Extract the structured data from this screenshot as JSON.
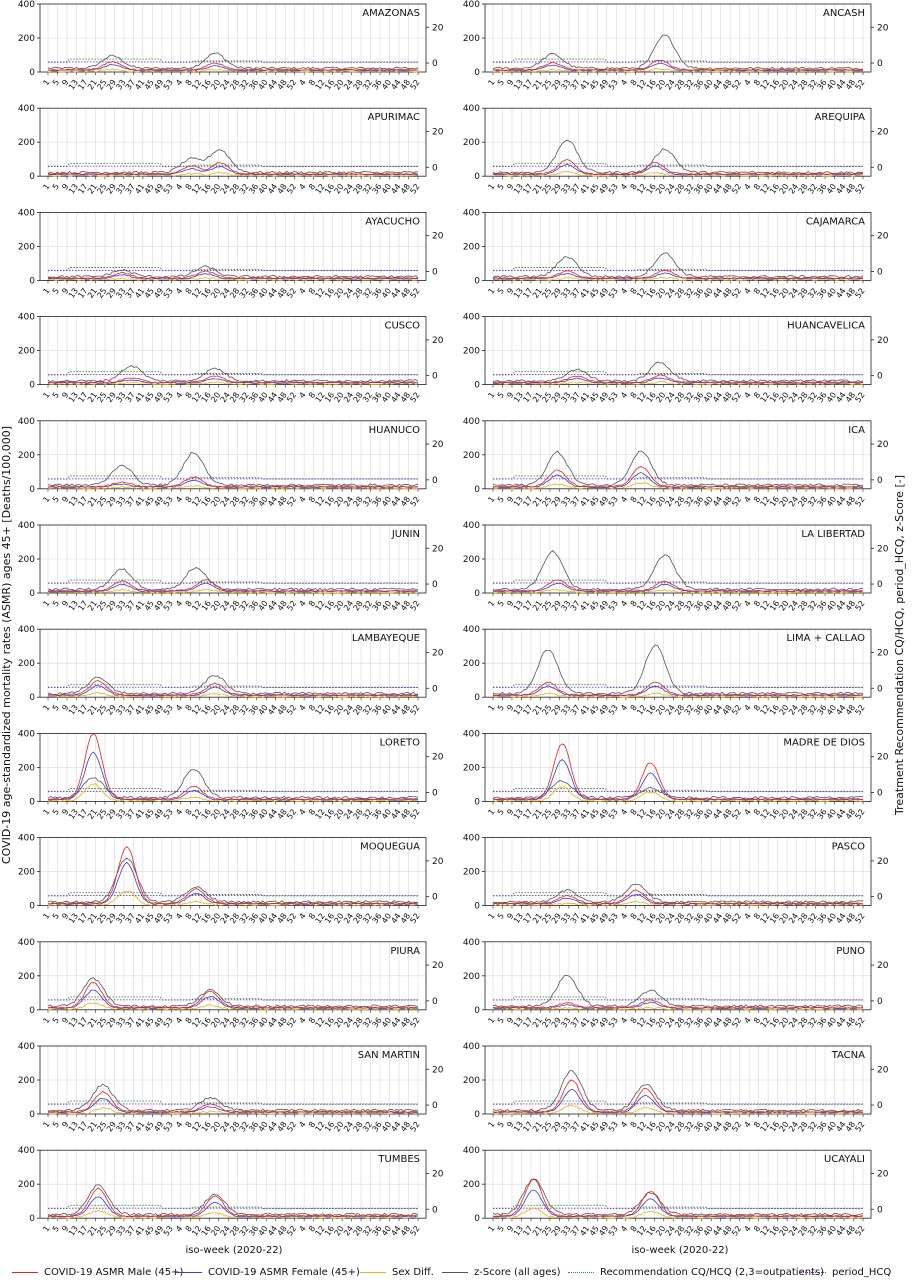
{
  "chart_data": {
    "type": "line",
    "y_left_label": "COVID-19 age-standardized mortality rates (ASMR) ages 45+ [Deaths/100,000]",
    "y_right_label": "Treatment Recommendation CQ/HCQ, period_HCQ, z-Score [-]",
    "x_label": "iso-week (2020-22)",
    "ylim_left": [
      0,
      400
    ],
    "yticks_left": [
      "0",
      "200",
      "400"
    ],
    "ylim_right": [
      -5,
      33
    ],
    "yticks_right": [
      "0",
      "20"
    ],
    "x_ticks": [
      "1",
      "5",
      "9",
      "13",
      "17",
      "21",
      "25",
      "29",
      "33",
      "37",
      "41",
      "45",
      "49",
      "53",
      "4",
      "8",
      "12",
      "16",
      "20",
      "24",
      "28",
      "32",
      "36",
      "40",
      "44",
      "48",
      "52",
      "4",
      "8",
      "12",
      "16",
      "20",
      "24",
      "28",
      "32",
      "36",
      "40",
      "44",
      "48",
      "52"
    ],
    "grid": true,
    "legend": {
      "placement": "bottom",
      "entries": [
        {
          "label": "COVID-19 ASMR Male (45+)",
          "color": "#e8231f",
          "style": "solid"
        },
        {
          "label": "COVID-19 ASMR Female (45+)",
          "color": "#3b3bd6",
          "style": "solid"
        },
        {
          "label": "Sex Diff.",
          "color": "#f2b200",
          "style": "solid"
        },
        {
          "label": "z-Score (all ages)",
          "color": "#555555",
          "style": "solid"
        },
        {
          "label": "Recommendation CQ/HCQ (2,3=outpatients)",
          "color": "#2a9a2a",
          "style": "dotted"
        },
        {
          "label": "period_HCQ",
          "color": "#8a2be2",
          "style": "dotted"
        }
      ]
    },
    "panels": [
      {
        "region": "AMAZONAS",
        "male_peaks": [
          [
            27,
            60
          ],
          [
            70,
            50
          ]
        ],
        "zscore_peaks": [
          [
            27,
            95
          ],
          [
            70,
            110
          ]
        ]
      },
      {
        "region": "ANCASH",
        "male_peaks": [
          [
            25,
            55
          ],
          [
            70,
            70
          ]
        ],
        "zscore_peaks": [
          [
            25,
            105
          ],
          [
            72,
            215
          ]
        ]
      },
      {
        "region": "APURIMAC",
        "male_peaks": [
          [
            60,
            60
          ],
          [
            72,
            80
          ]
        ],
        "zscore_peaks": [
          [
            60,
            100
          ],
          [
            72,
            155
          ]
        ]
      },
      {
        "region": "AREQUIPA",
        "male_peaks": [
          [
            31,
            95
          ],
          [
            68,
            80
          ]
        ],
        "zscore_peaks": [
          [
            31,
            215
          ],
          [
            72,
            160
          ]
        ]
      },
      {
        "region": "AYACUCHO",
        "male_peaks": [
          [
            31,
            45
          ],
          [
            66,
            55
          ]
        ],
        "zscore_peaks": [
          [
            31,
            60
          ],
          [
            66,
            80
          ]
        ]
      },
      {
        "region": "CAJAMARCA",
        "male_peaks": [
          [
            31,
            55
          ],
          [
            72,
            60
          ]
        ],
        "zscore_peaks": [
          [
            31,
            140
          ],
          [
            72,
            160
          ]
        ]
      },
      {
        "region": "CUSCO",
        "male_peaks": [
          [
            35,
            40
          ],
          [
            70,
            50
          ]
        ],
        "zscore_peaks": [
          [
            35,
            110
          ],
          [
            70,
            95
          ]
        ]
      },
      {
        "region": "HUANCAVELICA",
        "male_peaks": [
          [
            35,
            50
          ],
          [
            70,
            55
          ]
        ],
        "zscore_peaks": [
          [
            35,
            90
          ],
          [
            70,
            130
          ]
        ]
      },
      {
        "region": "HUANUCO",
        "male_peaks": [
          [
            31,
            40
          ],
          [
            61,
            70
          ]
        ],
        "zscore_peaks": [
          [
            31,
            140
          ],
          [
            61,
            215
          ]
        ]
      },
      {
        "region": "ICA",
        "male_peaks": [
          [
            27,
            110
          ],
          [
            62,
            130
          ]
        ],
        "zscore_peaks": [
          [
            27,
            215
          ],
          [
            62,
            225
          ]
        ]
      },
      {
        "region": "JUNIN",
        "male_peaks": [
          [
            31,
            70
          ],
          [
            66,
            80
          ]
        ],
        "zscore_peaks": [
          [
            31,
            140
          ],
          [
            62,
            150
          ]
        ]
      },
      {
        "region": "LA LIBERTAD",
        "male_peaks": [
          [
            27,
            80
          ],
          [
            72,
            70
          ]
        ],
        "zscore_peaks": [
          [
            25,
            245
          ],
          [
            72,
            225
          ]
        ]
      },
      {
        "region": "LAMBAYEQUE",
        "male_peaks": [
          [
            21,
            95
          ],
          [
            70,
            80
          ]
        ],
        "zscore_peaks": [
          [
            21,
            115
          ],
          [
            70,
            130
          ]
        ]
      },
      {
        "region": "LIMA + CALLAO",
        "male_peaks": [
          [
            23,
            90
          ],
          [
            68,
            90
          ]
        ],
        "zscore_peaks": [
          [
            23,
            280
          ],
          [
            68,
            305
          ]
        ]
      },
      {
        "region": "LORETO",
        "male_peaks": [
          [
            19,
            400
          ],
          [
            61,
            90
          ]
        ],
        "zscore_peaks": [
          [
            19,
            140
          ],
          [
            61,
            190
          ]
        ]
      },
      {
        "region": "MADRE DE DIOS",
        "male_peaks": [
          [
            29,
            340
          ],
          [
            66,
            230
          ]
        ],
        "zscore_peaks": [
          [
            29,
            120
          ],
          [
            66,
            80
          ]
        ]
      },
      {
        "region": "MOQUEGUA",
        "male_peaks": [
          [
            33,
            350
          ],
          [
            62,
            100
          ]
        ],
        "zscore_peaks": [
          [
            33,
            280
          ],
          [
            62,
            110
          ]
        ]
      },
      {
        "region": "PASCO",
        "male_peaks": [
          [
            31,
            60
          ],
          [
            60,
            90
          ]
        ],
        "zscore_peaks": [
          [
            31,
            90
          ],
          [
            60,
            130
          ]
        ]
      },
      {
        "region": "PIURA",
        "male_peaks": [
          [
            19,
            160
          ],
          [
            68,
            110
          ]
        ],
        "zscore_peaks": [
          [
            19,
            185
          ],
          [
            68,
            115
          ]
        ]
      },
      {
        "region": "PUNO",
        "male_peaks": [
          [
            31,
            40
          ],
          [
            66,
            60
          ]
        ],
        "zscore_peaks": [
          [
            31,
            205
          ],
          [
            66,
            115
          ]
        ]
      },
      {
        "region": "SAN MARTIN",
        "male_peaks": [
          [
            23,
            130
          ],
          [
            68,
            60
          ]
        ],
        "zscore_peaks": [
          [
            23,
            170
          ],
          [
            68,
            95
          ]
        ]
      },
      {
        "region": "TACNA",
        "male_peaks": [
          [
            33,
            200
          ],
          [
            64,
            150
          ]
        ],
        "zscore_peaks": [
          [
            33,
            255
          ],
          [
            64,
            175
          ]
        ]
      },
      {
        "region": "TUMBES",
        "male_peaks": [
          [
            21,
            175
          ],
          [
            70,
            130
          ]
        ],
        "zscore_peaks": [
          [
            21,
            195
          ],
          [
            70,
            140
          ]
        ]
      },
      {
        "region": "UCAYALI",
        "male_peaks": [
          [
            17,
            230
          ],
          [
            66,
            160
          ]
        ],
        "zscore_peaks": [
          [
            17,
            230
          ],
          [
            66,
            150
          ]
        ]
      }
    ]
  }
}
